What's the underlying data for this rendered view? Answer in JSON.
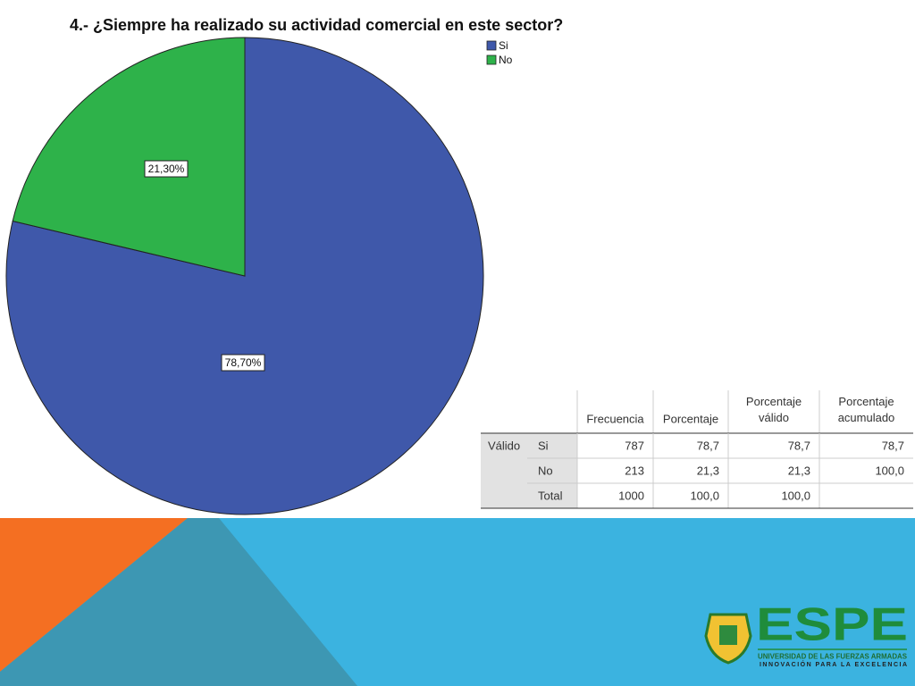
{
  "chart_data": {
    "type": "pie",
    "title": "4.- ¿Siempre ha realizado su actividad comercial en este sector?",
    "categories": [
      "Si",
      "No"
    ],
    "values": [
      78.7,
      21.3
    ],
    "value_labels": [
      "78,70%",
      "21,30%"
    ],
    "colors": [
      "#3f58aa",
      "#2eb24a"
    ],
    "legend": "top-right"
  },
  "table": {
    "headers": [
      "Frecuencia",
      "Porcentaje",
      "Porcentaje válido",
      "Porcentaje acumulado"
    ],
    "rows": [
      {
        "group": "Válido",
        "label": "Si",
        "cells": [
          "787",
          "78,7",
          "78,7",
          "78,7"
        ]
      },
      {
        "label": "No",
        "cells": [
          "213",
          "21,3",
          "21,3",
          "100,0"
        ]
      },
      {
        "label": "Total",
        "cells": [
          "1000",
          "100,0",
          "100,0"
        ]
      }
    ]
  },
  "footer": {
    "logo": "ESPE",
    "name": "UNIVERSIDAD DE LAS FUERZAS ARMADAS",
    "motto": "INNOVACIÓN PARA LA EXCELENCIA"
  }
}
